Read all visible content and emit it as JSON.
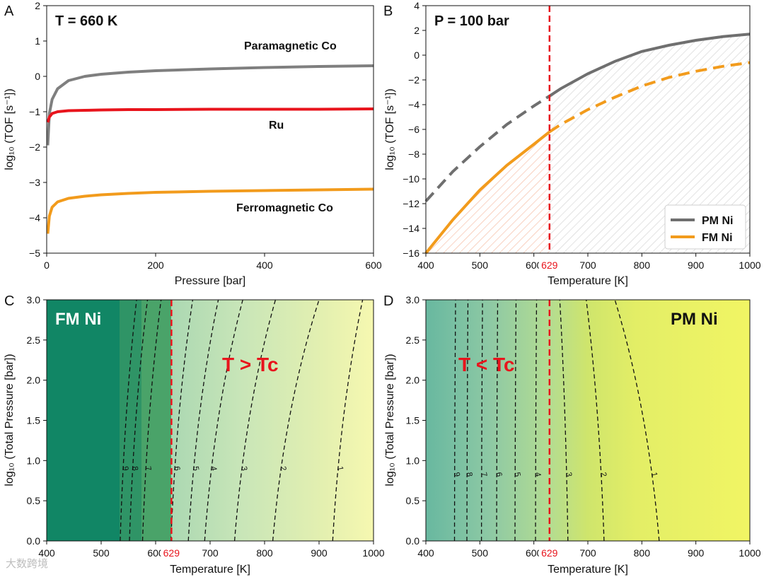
{
  "chart_data": [
    {
      "panel": "A",
      "type": "line",
      "annotation": "T = 660 K",
      "xlabel": "Pressure [bar]",
      "ylabel": "log₁₀ (TOF [s⁻¹])",
      "xlim": [
        0,
        600
      ],
      "ylim": [
        -5,
        2
      ],
      "xticks": [
        0,
        200,
        400,
        600
      ],
      "yticks": [
        -5,
        -4,
        -3,
        -2,
        -1,
        0,
        1,
        2
      ],
      "series": [
        {
          "name": "Paramagnetic Co",
          "color": "#7f7f7f",
          "x": [
            2,
            5,
            10,
            20,
            40,
            70,
            100,
            150,
            200,
            300,
            400,
            500,
            600
          ],
          "y": [
            -1.95,
            -1.05,
            -0.65,
            -0.35,
            -0.12,
            0.0,
            0.06,
            0.12,
            0.16,
            0.21,
            0.25,
            0.28,
            0.3
          ]
        },
        {
          "name": "Ru",
          "color": "#e8141c",
          "x": [
            2,
            5,
            10,
            20,
            40,
            70,
            100,
            150,
            200,
            300,
            400,
            500,
            600
          ],
          "y": [
            -1.3,
            -1.15,
            -1.05,
            -1.0,
            -0.97,
            -0.96,
            -0.95,
            -0.94,
            -0.94,
            -0.93,
            -0.93,
            -0.93,
            -0.92
          ]
        },
        {
          "name": "Ferromagnetic Co",
          "color": "#f29b1c",
          "x": [
            2,
            5,
            10,
            20,
            40,
            70,
            100,
            150,
            200,
            300,
            400,
            500,
            600
          ],
          "y": [
            -4.45,
            -3.95,
            -3.7,
            -3.55,
            -3.45,
            -3.39,
            -3.35,
            -3.31,
            -3.28,
            -3.25,
            -3.23,
            -3.21,
            -3.19
          ]
        }
      ]
    },
    {
      "panel": "B",
      "type": "line",
      "annotation": "P = 100 bar",
      "xlabel": "Temperature [K]",
      "ylabel": "log₁₀ (TOF [s⁻¹])",
      "xlim": [
        400,
        1000
      ],
      "ylim": [
        -16,
        4
      ],
      "xticks": [
        400,
        500,
        600,
        700,
        800,
        900,
        1000
      ],
      "yticks": [
        -16,
        -14,
        -12,
        -10,
        -8,
        -6,
        -4,
        -2,
        0,
        2,
        4
      ],
      "tc": 629,
      "tc_label": "629",
      "legend": "lower-right",
      "series": [
        {
          "name": "PM Ni",
          "color": "#6f6f6f",
          "x": [
            400,
            450,
            500,
            550,
            600,
            629,
            650,
            700,
            750,
            800,
            850,
            900,
            950,
            1000
          ],
          "y": [
            -11.8,
            -9.4,
            -7.4,
            -5.6,
            -4.1,
            -3.3,
            -2.7,
            -1.5,
            -0.5,
            0.3,
            0.8,
            1.2,
            1.5,
            1.7
          ]
        },
        {
          "name": "FM Ni",
          "color": "#f29b1c",
          "x": [
            400,
            450,
            500,
            550,
            600,
            629,
            650,
            700,
            750,
            800,
            850,
            900,
            950,
            1000
          ],
          "y": [
            -16.0,
            -13.3,
            -10.9,
            -8.9,
            -7.2,
            -6.2,
            -5.6,
            -4.4,
            -3.4,
            -2.5,
            -1.8,
            -1.3,
            -0.9,
            -0.6
          ]
        }
      ]
    },
    {
      "panel": "C",
      "type": "heatmap",
      "annotations": [
        "FM Ni",
        "T > Tc"
      ],
      "xlabel": "Temperature [K]",
      "ylabel": "log₁₀ (Total Pressure [bar])",
      "xlim": [
        400,
        1000
      ],
      "ylim": [
        0,
        3
      ],
      "xticks": [
        400,
        500,
        600,
        700,
        800,
        900,
        1000
      ],
      "yticks": [
        0,
        0.5,
        1.0,
        1.5,
        2.0,
        2.5,
        3.0
      ],
      "tc": 629,
      "tc_label": "629",
      "contour_levels": [
        {
          "label": "-9",
          "x_bottom": 535,
          "x_top": 565
        },
        {
          "label": "-8",
          "x_bottom": 552,
          "x_top": 585
        },
        {
          "label": "-7",
          "x_bottom": 576,
          "x_top": 610
        },
        {
          "label": "-6",
          "x_bottom": 628,
          "x_top": 668
        },
        {
          "label": "-5",
          "x_bottom": 660,
          "x_top": 715
        },
        {
          "label": "-4",
          "x_bottom": 690,
          "x_top": 760
        },
        {
          "label": "-3",
          "x_bottom": 745,
          "x_top": 820
        },
        {
          "label": "-2",
          "x_bottom": 815,
          "x_top": 900
        },
        {
          "label": "-1",
          "x_bottom": 925,
          "x_top": 980
        }
      ]
    },
    {
      "panel": "D",
      "type": "heatmap",
      "annotations": [
        "PM Ni",
        "T < Tc"
      ],
      "xlabel": "Temperature [K]",
      "ylabel": "log₁₀ (Total Pressure [bar])",
      "xlim": [
        400,
        1000
      ],
      "ylim": [
        0,
        3
      ],
      "xticks": [
        400,
        500,
        600,
        700,
        800,
        900,
        1000
      ],
      "yticks": [
        0,
        0.5,
        1.0,
        1.5,
        2.0,
        2.5,
        3.0
      ],
      "tc": 629,
      "tc_label": "629",
      "contour_levels": [
        {
          "label": "-9",
          "x_bottom": 453,
          "x_top": 455
        },
        {
          "label": "-8",
          "x_bottom": 476,
          "x_top": 478
        },
        {
          "label": "-7",
          "x_bottom": 503,
          "x_top": 505
        },
        {
          "label": "-6",
          "x_bottom": 531,
          "x_top": 533
        },
        {
          "label": "-5",
          "x_bottom": 565,
          "x_top": 567
        },
        {
          "label": "-4",
          "x_bottom": 603,
          "x_top": 605
        },
        {
          "label": "-3",
          "x_bottom": 663,
          "x_top": 648
        },
        {
          "label": "-2",
          "x_bottom": 730,
          "x_top": 697
        },
        {
          "label": "-1",
          "x_bottom": 832,
          "x_top": 750
        }
      ]
    }
  ],
  "panel_labels": [
    "A",
    "B",
    "C",
    "D"
  ],
  "watermark": "大数跨境"
}
